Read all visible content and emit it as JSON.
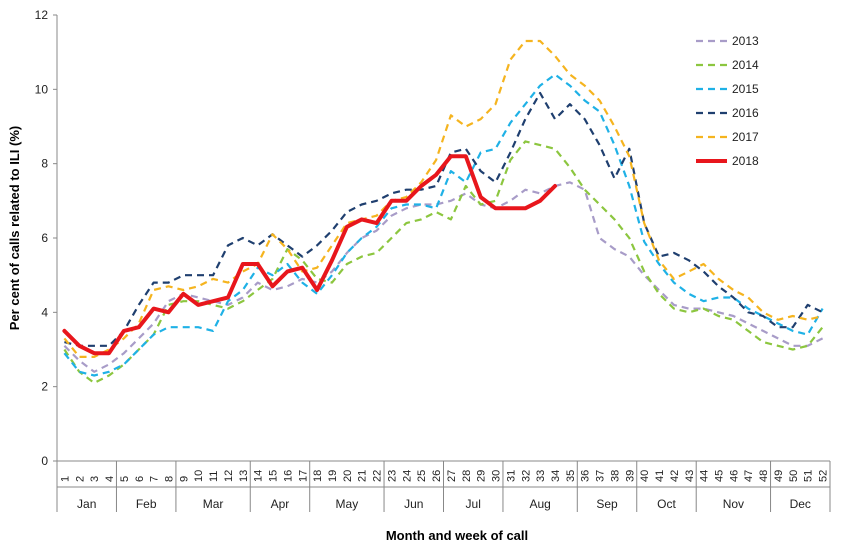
{
  "chart_data": {
    "type": "line",
    "xlabel": "Month and week of call",
    "ylabel": "Per cent of calls related to ILI (%)",
    "ylim": [
      0,
      12
    ],
    "yticks": [
      "0",
      "2",
      "4",
      "6",
      "8",
      "10",
      "12"
    ],
    "weeks": [
      "1",
      "2",
      "3",
      "4",
      "5",
      "6",
      "7",
      "8",
      "9",
      "10",
      "11",
      "12",
      "13",
      "14",
      "15",
      "16",
      "17",
      "18",
      "19",
      "20",
      "21",
      "22",
      "23",
      "24",
      "25",
      "26",
      "27",
      "28",
      "29",
      "30",
      "31",
      "32",
      "33",
      "34",
      "35",
      "36",
      "37",
      "38",
      "39",
      "40",
      "41",
      "42",
      "43",
      "44",
      "45",
      "46",
      "47",
      "48",
      "49",
      "50",
      "51",
      "52"
    ],
    "months": [
      {
        "label": "Jan",
        "start": 1,
        "end": 4
      },
      {
        "label": "Feb",
        "start": 5,
        "end": 8
      },
      {
        "label": "Mar",
        "start": 9,
        "end": 13
      },
      {
        "label": "Apr",
        "start": 14,
        "end": 17
      },
      {
        "label": "May",
        "start": 18,
        "end": 22
      },
      {
        "label": "Jun",
        "start": 23,
        "end": 26
      },
      {
        "label": "Jul",
        "start": 27,
        "end": 30
      },
      {
        "label": "Aug",
        "start": 31,
        "end": 35
      },
      {
        "label": "Sep",
        "start": 36,
        "end": 39
      },
      {
        "label": "Oct",
        "start": 40,
        "end": 43
      },
      {
        "label": "Nov",
        "start": 44,
        "end": 48
      },
      {
        "label": "Dec",
        "start": 49,
        "end": 52
      }
    ],
    "legend_position": "top-right",
    "grid": false,
    "series": [
      {
        "name": "2013",
        "color": "#a89cc8",
        "style": "dashed",
        "values": [
          3.1,
          2.7,
          2.4,
          2.6,
          2.9,
          3.3,
          3.7,
          4.3,
          4.5,
          4.4,
          4.3,
          4.2,
          4.4,
          4.8,
          4.6,
          4.7,
          4.9,
          4.8,
          5.1,
          5.6,
          6.0,
          6.2,
          6.6,
          6.8,
          6.9,
          6.9,
          7.0,
          7.2,
          6.9,
          6.8,
          7.0,
          7.3,
          7.2,
          7.4,
          7.5,
          7.3,
          6.0,
          5.7,
          5.5,
          5.0,
          4.6,
          4.2,
          4.1,
          4.1,
          4.0,
          3.9,
          3.7,
          3.5,
          3.3,
          3.1,
          3.1,
          3.3
        ]
      },
      {
        "name": "2014",
        "color": "#8cc63f",
        "style": "dashed",
        "values": [
          3.0,
          2.4,
          2.1,
          2.3,
          2.6,
          3.0,
          3.4,
          4.2,
          4.3,
          4.3,
          4.2,
          4.1,
          4.3,
          4.6,
          4.9,
          5.7,
          5.4,
          4.9,
          4.8,
          5.3,
          5.5,
          5.6,
          6.0,
          6.4,
          6.5,
          6.7,
          6.5,
          7.4,
          6.9,
          7.0,
          8.1,
          8.6,
          8.5,
          8.4,
          7.9,
          7.3,
          6.9,
          6.5,
          6.0,
          5.1,
          4.5,
          4.1,
          4.0,
          4.1,
          3.9,
          3.8,
          3.5,
          3.2,
          3.1,
          3.0,
          3.1,
          3.6
        ]
      },
      {
        "name": "2015",
        "color": "#1fb1e6",
        "style": "dashed",
        "values": [
          2.9,
          2.4,
          2.3,
          2.4,
          2.6,
          3.0,
          3.4,
          3.6,
          3.6,
          3.6,
          3.5,
          4.3,
          4.6,
          5.2,
          5.0,
          5.3,
          4.8,
          4.5,
          5.0,
          5.6,
          6.0,
          6.3,
          6.8,
          6.9,
          6.9,
          6.8,
          7.8,
          7.5,
          8.3,
          8.4,
          9.1,
          9.6,
          10.1,
          10.4,
          10.1,
          9.7,
          9.4,
          8.5,
          7.4,
          5.9,
          5.3,
          4.8,
          4.5,
          4.3,
          4.4,
          4.4,
          4.1,
          3.9,
          3.7,
          3.5,
          3.4,
          4.1
        ]
      },
      {
        "name": "2016",
        "color": "#1f3f6f",
        "style": "dashed",
        "values": [
          3.2,
          3.1,
          3.1,
          3.1,
          3.5,
          4.2,
          4.8,
          4.8,
          5.0,
          5.0,
          5.0,
          5.8,
          6.0,
          5.8,
          6.1,
          5.8,
          5.5,
          5.8,
          6.2,
          6.7,
          6.9,
          7.0,
          7.2,
          7.3,
          7.3,
          7.4,
          8.3,
          8.4,
          7.8,
          7.5,
          8.3,
          9.2,
          9.9,
          9.2,
          9.6,
          9.2,
          8.5,
          7.6,
          8.4,
          6.4,
          5.5,
          5.6,
          5.4,
          5.1,
          4.7,
          4.4,
          4.0,
          3.9,
          3.6,
          3.6,
          4.2,
          4.0
        ]
      },
      {
        "name": "2017",
        "color": "#f5b41f",
        "style": "dashed",
        "values": [
          3.3,
          2.8,
          2.8,
          3.0,
          3.3,
          3.7,
          4.6,
          4.7,
          4.6,
          4.7,
          4.9,
          4.8,
          5.1,
          5.3,
          6.1,
          5.7,
          5.1,
          5.2,
          5.8,
          6.4,
          6.5,
          6.6,
          7.0,
          7.1,
          7.5,
          8.1,
          9.3,
          9.0,
          9.2,
          9.6,
          10.8,
          11.3,
          11.3,
          10.9,
          10.4,
          10.1,
          9.7,
          9.0,
          8.2,
          6.4,
          5.4,
          4.9,
          5.1,
          5.3,
          4.9,
          4.6,
          4.4,
          4.0,
          3.8,
          3.9,
          3.8,
          3.9
        ]
      },
      {
        "name": "2018",
        "color": "#e8161c",
        "style": "solid",
        "values": [
          3.5,
          3.1,
          2.9,
          2.9,
          3.5,
          3.6,
          4.1,
          4.0,
          4.5,
          4.2,
          4.3,
          4.4,
          5.3,
          5.3,
          4.7,
          5.1,
          5.2,
          4.6,
          5.4,
          6.3,
          6.5,
          6.4,
          7.0,
          7.0,
          7.4,
          7.7,
          8.2,
          8.2,
          7.1,
          6.8,
          6.8,
          6.8,
          7.0,
          7.4,
          null,
          null,
          null,
          null,
          null,
          null,
          null,
          null,
          null,
          null,
          null,
          null,
          null,
          null,
          null,
          null,
          null,
          null
        ]
      }
    ]
  }
}
